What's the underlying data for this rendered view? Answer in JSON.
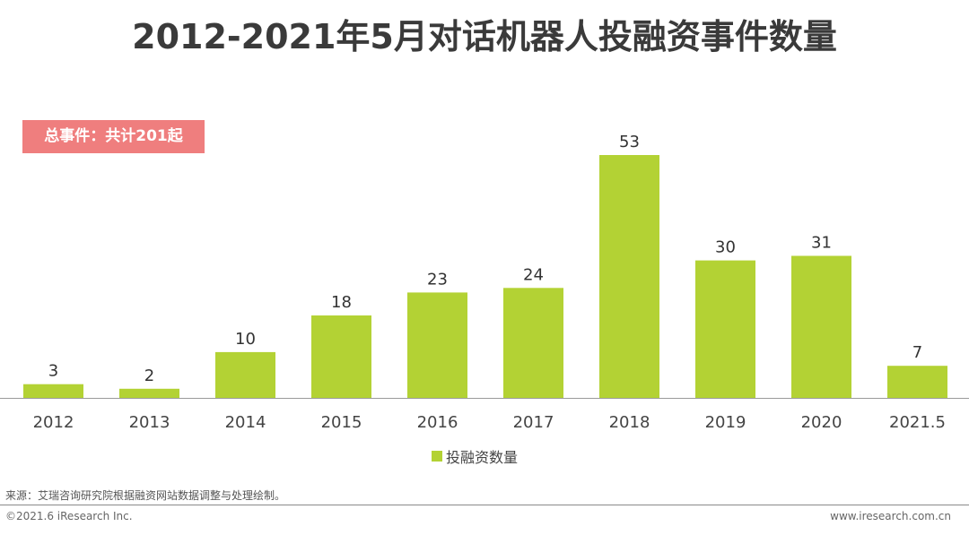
{
  "title": "2012-2021年5月对话机器人投融资事件数量",
  "badge": "总事件：共计201起",
  "source": "来源：艾瑞咨询研究院根据融资网站数据调整与处理绘制。",
  "copyright": "©2021.6 iResearch Inc.",
  "website": "www.iresearch.com.cn",
  "colors": {
    "bar": "#b3d234",
    "badge": "#ef7e7e",
    "axis": "#9a9a9a"
  },
  "chart_data": {
    "type": "bar",
    "title": "2012-2021年5月对话机器人投融资事件数量",
    "xlabel": "",
    "ylabel": "",
    "categories": [
      "2012",
      "2013",
      "2014",
      "2015",
      "2016",
      "2017",
      "2018",
      "2019",
      "2020",
      "2021.5"
    ],
    "series": [
      {
        "name": "投融资数量",
        "values": [
          3,
          2,
          10,
          18,
          23,
          24,
          53,
          30,
          31,
          7
        ]
      }
    ],
    "ylim": [
      0,
      53
    ],
    "grid": false,
    "legend": "bottom-center",
    "data_labels": true
  }
}
